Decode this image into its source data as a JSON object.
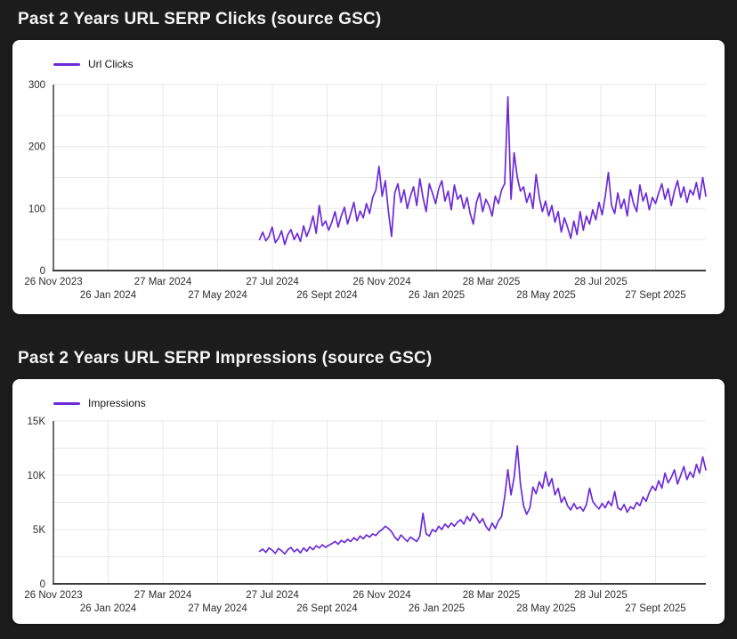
{
  "page": {
    "background_color": "#1c1c1c",
    "card_color": "#ffffff"
  },
  "chart_data": [
    {
      "type": "line",
      "title": "Past 2 Years URL SERP Clicks (source GSC)",
      "legend": {
        "label": "Url Clicks",
        "position": "top-left"
      },
      "grid": true,
      "x_axis": {
        "range": [
          "26 Nov 2023",
          "26 Nov 2025"
        ],
        "tick_labels": [
          "26 Nov 2023",
          "26 Jan 2024",
          "27 Mar 2024",
          "27 May 2024",
          "27 Jul 2024",
          "26 Sept 2024",
          "26 Nov 2024",
          "26 Jan 2025",
          "28 Mar 2025",
          "28 May 2025",
          "28 Jul 2025",
          "27 Sept 2025"
        ],
        "staggered_labels": true,
        "data_start_fraction": 0.316
      },
      "y_axis": {
        "min": 0,
        "max": 300,
        "ticks": [
          0,
          100,
          200,
          300
        ],
        "tick_labels": [
          "0",
          "100",
          "200",
          "300"
        ],
        "gridline_step": 50
      },
      "series": [
        {
          "name": "Url Clicks",
          "color": "#6c2bd9",
          "values": [
            50,
            62,
            48,
            55,
            70,
            45,
            52,
            64,
            42,
            58,
            66,
            50,
            60,
            47,
            72,
            55,
            68,
            88,
            60,
            105,
            72,
            80,
            65,
            78,
            95,
            70,
            88,
            102,
            75,
            92,
            110,
            80,
            96,
            85,
            108,
            92,
            118,
            130,
            168,
            120,
            145,
            95,
            55,
            125,
            140,
            110,
            130,
            100,
            120,
            135,
            105,
            148,
            118,
            95,
            140,
            125,
            108,
            132,
            145,
            112,
            128,
            98,
            138,
            115,
            122,
            100,
            118,
            92,
            75,
            110,
            125,
            95,
            115,
            105,
            88,
            120,
            108,
            130,
            140,
            280,
            115,
            190,
            150,
            128,
            135,
            110,
            125,
            100,
            155,
            118,
            95,
            112,
            88,
            105,
            78,
            95,
            62,
            85,
            70,
            52,
            80,
            58,
            95,
            65,
            88,
            75,
            98,
            82,
            110,
            90,
            120,
            158,
            105,
            92,
            125,
            100,
            115,
            88,
            130,
            108,
            95,
            138,
            112,
            125,
            98,
            118,
            108,
            125,
            140,
            115,
            132,
            105,
            128,
            145,
            118,
            135,
            110,
            130,
            122,
            142,
            115,
            150,
            120
          ]
        }
      ]
    },
    {
      "type": "line",
      "title": "Past 2 Years URL SERP Impressions (source GSC)",
      "legend": {
        "label": "Impressions",
        "position": "top-left"
      },
      "grid": true,
      "x_axis": {
        "range": [
          "26 Nov 2023",
          "26 Nov 2025"
        ],
        "tick_labels": [
          "26 Nov 2023",
          "26 Jan 2024",
          "27 Mar 2024",
          "27 May 2024",
          "27 Jul 2024",
          "26 Sept 2024",
          "26 Nov 2024",
          "26 Jan 2025",
          "28 Mar 2025",
          "28 May 2025",
          "28 Jul 2025",
          "27 Sept 2025"
        ],
        "staggered_labels": true,
        "data_start_fraction": 0.316
      },
      "y_axis": {
        "min": 0,
        "max": 15000,
        "ticks": [
          0,
          5000,
          10000,
          15000
        ],
        "tick_labels": [
          "0",
          "5K",
          "10K",
          "15K"
        ],
        "gridline_step": 2500
      },
      "series": [
        {
          "name": "Impressions",
          "color": "#6c2bd9",
          "values": [
            3000,
            3200,
            2900,
            3300,
            3100,
            2800,
            3250,
            3050,
            2750,
            3150,
            3350,
            2950,
            3200,
            2850,
            3300,
            3000,
            3400,
            3150,
            3500,
            3300,
            3600,
            3350,
            3550,
            3700,
            3900,
            3650,
            4000,
            3800,
            4100,
            3900,
            4250,
            4000,
            4400,
            4150,
            4500,
            4300,
            4600,
            4450,
            4800,
            5000,
            5300,
            5100,
            4800,
            4300,
            4000,
            4500,
            4200,
            3900,
            4300,
            4100,
            3900,
            4400,
            6500,
            4600,
            4400,
            5000,
            4800,
            5300,
            5000,
            5500,
            5200,
            5600,
            5300,
            5700,
            5900,
            5500,
            6200,
            5800,
            6500,
            6100,
            5600,
            6000,
            5300,
            4900,
            5600,
            5100,
            5800,
            6200,
            8000,
            10500,
            8200,
            9800,
            12700,
            9200,
            7200,
            6400,
            7000,
            8900,
            8300,
            9400,
            8800,
            10300,
            9000,
            9700,
            8200,
            8800,
            7500,
            8000,
            7200,
            6800,
            7400,
            6900,
            7100,
            6700,
            7300,
            8800,
            7600,
            7200,
            6900,
            7400,
            7000,
            7600,
            7200,
            8500,
            7000,
            6800,
            7300,
            6600,
            7100,
            6900,
            7500,
            7200,
            8000,
            7600,
            8400,
            9000,
            8600,
            9500,
            8800,
            10200,
            9300,
            9800,
            10500,
            9200,
            10000,
            10800,
            9600,
            10300,
            9800,
            11000,
            10200,
            11700,
            10500
          ]
        }
      ]
    }
  ]
}
